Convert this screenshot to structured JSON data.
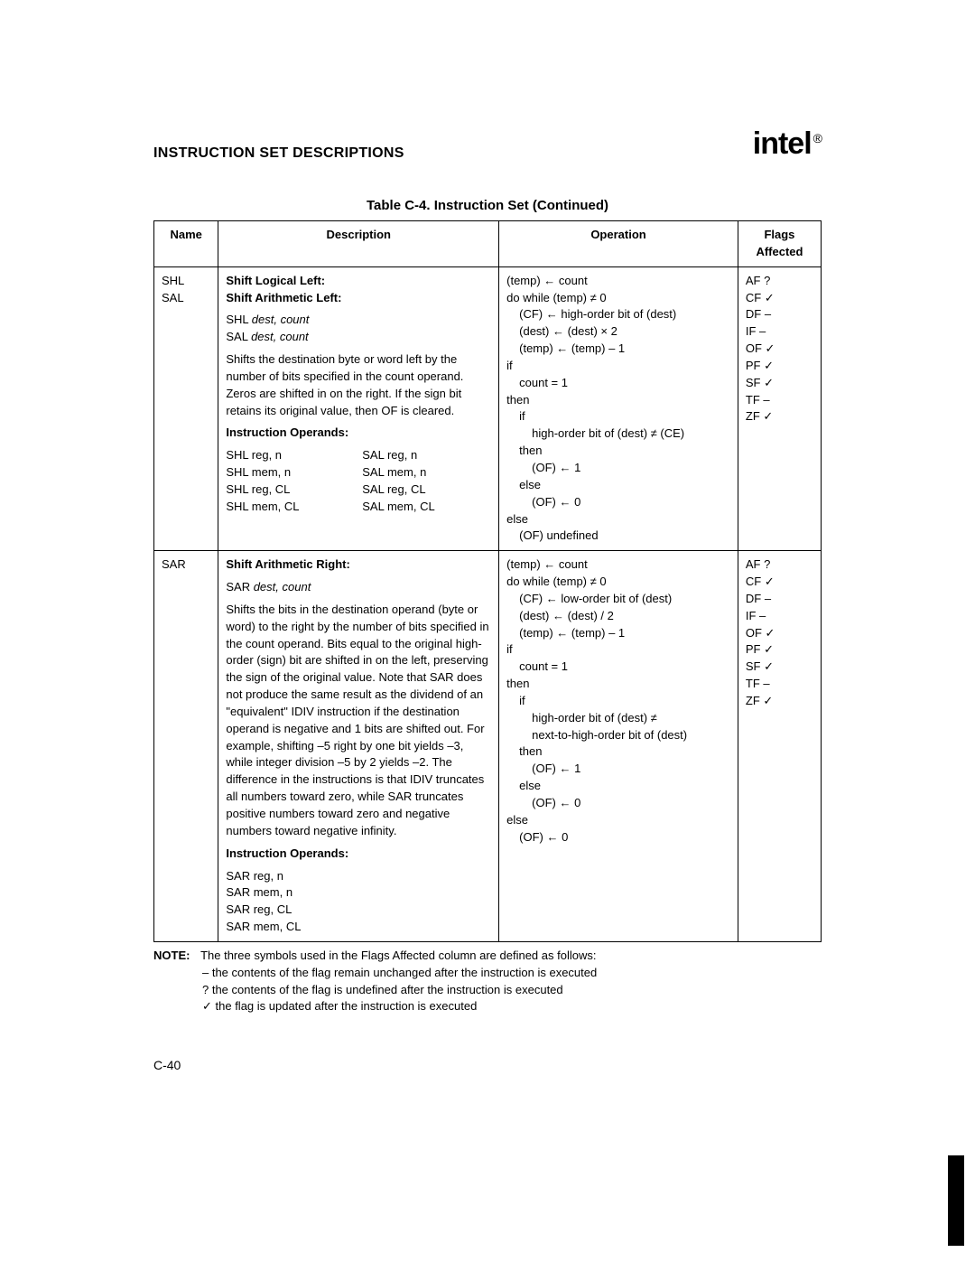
{
  "header": {
    "section_title": "INSTRUCTION SET DESCRIPTIONS",
    "logo_text": "intel",
    "logo_reg": "®"
  },
  "table": {
    "title": "Table C-4.  Instruction Set (Continued)",
    "columns": [
      "Name",
      "Description",
      "Operation",
      "Flags Affected"
    ],
    "rows": [
      {
        "name": "SHL\nSAL",
        "desc": {
          "title": "Shift Logical Left:",
          "title2": "Shift Arithmetic Left:",
          "syntax": [
            "SHL dest, count",
            "SAL dest, count"
          ],
          "body": "Shifts the destination byte or word left by the number of bits specified in the count operand. Zeros are shifted in on the right. If the sign bit retains its original value, then OF is cleared.",
          "operands_label": "Instruction Operands:",
          "operands_left": [
            "SHL reg, n",
            "SHL mem, n",
            "SHL reg, CL",
            "SHL mem, CL"
          ],
          "operands_right": [
            "SAL reg, n",
            "SAL mem, n",
            "SAL reg, CL",
            "SAL mem, CL"
          ]
        },
        "operation": [
          {
            "t": "(temp) ← count",
            "ind": 0
          },
          {
            "t": "do while (temp) ≠ 0",
            "ind": 0
          },
          {
            "t": "(CF) ← high-order bit of (dest)",
            "ind": 1
          },
          {
            "t": "(dest) ← (dest) × 2",
            "ind": 1
          },
          {
            "t": "(temp) ← (temp) – 1",
            "ind": 1
          },
          {
            "t": "if",
            "ind": 0
          },
          {
            "t": "count = 1",
            "ind": 1
          },
          {
            "t": "then",
            "ind": 0
          },
          {
            "t": "if",
            "ind": 1
          },
          {
            "t": "high-order bit of (dest) ≠ (CE)",
            "ind": 2
          },
          {
            "t": "then",
            "ind": 1
          },
          {
            "t": "(OF) ← 1",
            "ind": 2
          },
          {
            "t": "else",
            "ind": 1
          },
          {
            "t": "(OF) ← 0",
            "ind": 2
          },
          {
            "t": "else",
            "ind": 0
          },
          {
            "t": "(OF) undefined",
            "ind": 1
          }
        ],
        "flags": [
          "AF ?",
          "CF ✓",
          "DF –",
          "IF  –",
          "OF ✓",
          "PF ✓",
          "SF ✓",
          "TF –",
          "ZF ✓"
        ]
      },
      {
        "name": "SAR",
        "desc": {
          "title": "Shift Arithmetic Right:",
          "syntax": [
            "SAR dest, count"
          ],
          "body": "Shifts the bits in the destination operand (byte or word) to the right by the number of bits specified in the count operand. Bits equal to the original high-order (sign) bit are shifted in on the left, preserving the sign of the original value. Note that SAR does not produce the same result as the dividend of an \"equivalent\" IDIV instruction if the destination operand is negative and 1 bits are shifted out. For example, shifting –5 right by one bit yields –3, while integer division –5 by 2 yields –2. The difference in the instructions is that IDIV truncates all numbers toward zero, while SAR truncates positive numbers toward zero and negative numbers toward negative infinity.",
          "operands_label": "Instruction Operands:",
          "operands_single": [
            "SAR reg, n",
            "SAR mem, n",
            "SAR reg, CL",
            "SAR mem, CL"
          ]
        },
        "operation": [
          {
            "t": "(temp) ← count",
            "ind": 0
          },
          {
            "t": "do while (temp) ≠ 0",
            "ind": 0
          },
          {
            "t": "(CF) ← low-order bit of (dest)",
            "ind": 1
          },
          {
            "t": "(dest) ← (dest) / 2",
            "ind": 1
          },
          {
            "t": "(temp) ← (temp) – 1",
            "ind": 1
          },
          {
            "t": "if",
            "ind": 0
          },
          {
            "t": "count = 1",
            "ind": 1
          },
          {
            "t": "then",
            "ind": 0
          },
          {
            "t": "if",
            "ind": 1
          },
          {
            "t": "high-order bit of (dest) ≠",
            "ind": 2
          },
          {
            "t": "next-to-high-order bit of (dest)",
            "ind": 2
          },
          {
            "t": "then",
            "ind": 1
          },
          {
            "t": "(OF) ← 1",
            "ind": 2
          },
          {
            "t": "else",
            "ind": 1
          },
          {
            "t": "(OF) ← 0",
            "ind": 2
          },
          {
            "t": "else",
            "ind": 0
          },
          {
            "t": "(OF) ← 0",
            "ind": 1
          }
        ],
        "flags": [
          "AF ?",
          "CF ✓",
          "DF –",
          "IF  –",
          "OF ✓",
          "PF ✓",
          "SF ✓",
          "TF –",
          "ZF ✓"
        ]
      }
    ]
  },
  "note": {
    "label": "NOTE:",
    "lines": [
      "The three symbols used in the Flags Affected column are defined as follows:",
      "– the contents of the flag remain unchanged after the instruction is executed",
      "? the contents of the flag is undefined after the instruction is executed",
      "✓ the flag is updated after the instruction is executed"
    ]
  },
  "page_number": "C-40"
}
